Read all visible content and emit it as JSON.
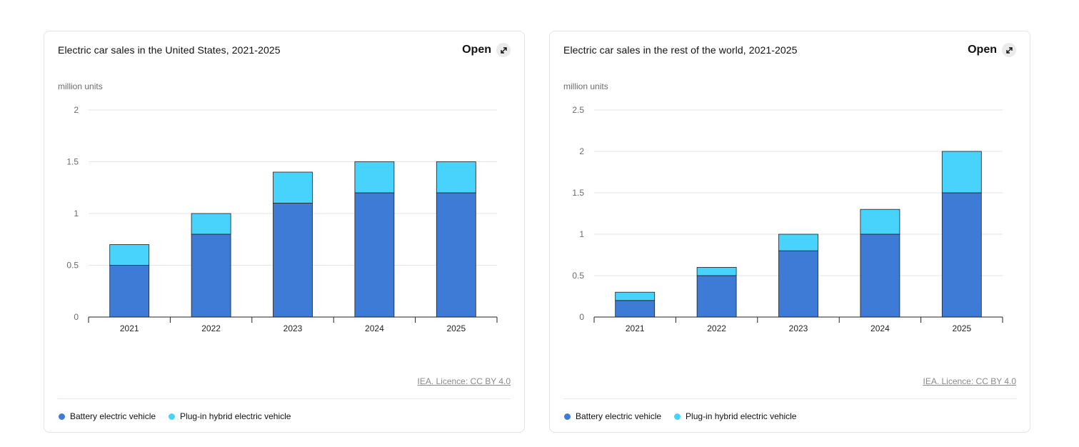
{
  "colors": {
    "bev": "#3d7bd6",
    "phev": "#47d3fb",
    "bar_stroke": "#1f1f1f",
    "grid": "#e5e5e5",
    "axis": "#222222"
  },
  "cards": [
    {
      "title": "Electric car sales in the United States, 2021-2025",
      "open_label": "Open",
      "open_icon": "expand-arrow-icon",
      "unit_label": "million units",
      "source": "IEA. Licence: CC BY 4.0",
      "legend": [
        {
          "label": "Battery electric vehicle",
          "color": "#3d7bd6"
        },
        {
          "label": "Plug-in hybrid electric vehicle",
          "color": "#47d3fb"
        }
      ]
    },
    {
      "title": "Electric car sales in the rest of the world, 2021-2025",
      "open_label": "Open",
      "open_icon": "expand-arrow-icon",
      "unit_label": "million units",
      "source": "IEA. Licence: CC BY 4.0",
      "legend": [
        {
          "label": "Battery electric vehicle",
          "color": "#3d7bd6"
        },
        {
          "label": "Plug-in hybrid electric vehicle",
          "color": "#47d3fb"
        }
      ]
    }
  ],
  "chart_data": [
    {
      "type": "bar",
      "stacked": true,
      "title": "Electric car sales in the United States, 2021-2025",
      "ylabel": "million units",
      "categories": [
        "2021",
        "2022",
        "2023",
        "2024",
        "2025"
      ],
      "series": [
        {
          "name": "Battery electric vehicle",
          "values": [
            0.5,
            0.8,
            1.1,
            1.2,
            1.2
          ]
        },
        {
          "name": "Plug-in hybrid electric vehicle",
          "values": [
            0.2,
            0.2,
            0.3,
            0.3,
            0.3
          ]
        }
      ],
      "ylim": [
        0,
        2
      ],
      "yticks": [
        0,
        0.5,
        1,
        1.5,
        2
      ],
      "grid": true,
      "legend": "bottom-left"
    },
    {
      "type": "bar",
      "stacked": true,
      "title": "Electric car sales in the rest of the world, 2021-2025",
      "ylabel": "million units",
      "categories": [
        "2021",
        "2022",
        "2023",
        "2024",
        "2025"
      ],
      "series": [
        {
          "name": "Battery electric vehicle",
          "values": [
            0.2,
            0.5,
            0.8,
            1.0,
            1.5
          ]
        },
        {
          "name": "Plug-in hybrid electric vehicle",
          "values": [
            0.1,
            0.1,
            0.2,
            0.3,
            0.5
          ]
        }
      ],
      "ylim": [
        0,
        2.5
      ],
      "yticks": [
        0,
        0.5,
        1,
        1.5,
        2,
        2.5
      ],
      "grid": true,
      "legend": "bottom-left"
    }
  ]
}
